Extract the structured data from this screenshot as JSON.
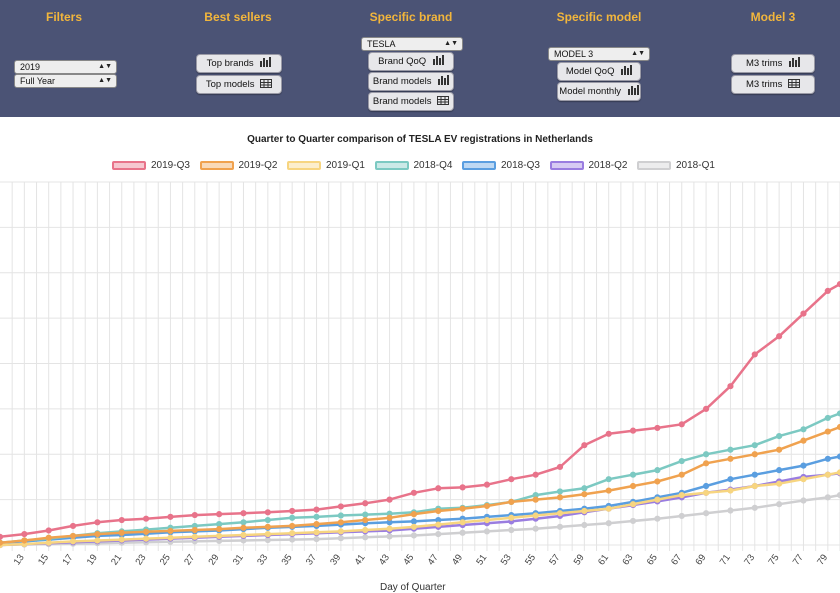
{
  "nav": {
    "filters": {
      "title": "Filters",
      "year": "2019",
      "period": "Full Year"
    },
    "best_sellers": {
      "title": "Best sellers",
      "top_brands": "Top brands",
      "top_models": "Top models"
    },
    "specific_brand": {
      "title": "Specific brand",
      "brand": "TESLA",
      "brand_qoq": "Brand QoQ",
      "brand_models_1": "Brand models",
      "brand_models_2": "Brand models"
    },
    "specific_model": {
      "title": "Specific model",
      "model": "MODEL 3",
      "model_qoq": "Model QoQ",
      "model_monthly": "Model monthly"
    },
    "model3": {
      "title": "Model 3",
      "m3_trims_1": "M3 trims",
      "m3_trims_2": "M3 trims"
    }
  },
  "icons": {
    "bar": "bar-chart-icon",
    "table": "table-icon",
    "dropdown": "chevron-updown-icon"
  },
  "chart_data": {
    "type": "line",
    "title": "Quarter to Quarter comparison of TESLA EV registrations in Netherlands",
    "xlabel": "Day of Quarter",
    "ylabel": "",
    "xlim": [
      11,
      80
    ],
    "ylim": [
      0,
      8
    ],
    "grid": true,
    "legend": "top-center",
    "x_ticks": [
      13,
      15,
      17,
      19,
      21,
      23,
      25,
      27,
      29,
      31,
      33,
      35,
      37,
      39,
      41,
      43,
      45,
      47,
      49,
      51,
      53,
      55,
      57,
      59,
      61,
      63,
      65,
      67,
      69,
      71,
      73,
      75,
      77,
      79
    ],
    "series": [
      {
        "name": "2019-Q3",
        "color": "#e8738a",
        "points": [
          [
            11,
            0.18
          ],
          [
            13,
            0.24
          ],
          [
            15,
            0.32
          ],
          [
            17,
            0.42
          ],
          [
            19,
            0.5
          ],
          [
            21,
            0.55
          ],
          [
            23,
            0.58
          ],
          [
            25,
            0.62
          ],
          [
            27,
            0.66
          ],
          [
            29,
            0.68
          ],
          [
            31,
            0.7
          ],
          [
            33,
            0.72
          ],
          [
            35,
            0.75
          ],
          [
            37,
            0.78
          ],
          [
            39,
            0.85
          ],
          [
            41,
            0.92
          ],
          [
            43,
            1.0
          ],
          [
            45,
            1.15
          ],
          [
            47,
            1.25
          ],
          [
            49,
            1.27
          ],
          [
            51,
            1.33
          ],
          [
            53,
            1.45
          ],
          [
            55,
            1.55
          ],
          [
            57,
            1.72
          ],
          [
            59,
            2.2
          ],
          [
            61,
            2.45
          ],
          [
            63,
            2.52
          ],
          [
            65,
            2.58
          ],
          [
            67,
            2.66
          ],
          [
            69,
            3.0
          ],
          [
            71,
            3.5
          ],
          [
            73,
            4.2
          ],
          [
            75,
            4.6
          ],
          [
            77,
            5.1
          ],
          [
            79,
            5.6
          ],
          [
            80,
            5.75
          ]
        ]
      },
      {
        "name": "2019-Q2",
        "color": "#f0a24f",
        "points": [
          [
            11,
            0.05
          ],
          [
            13,
            0.1
          ],
          [
            15,
            0.16
          ],
          [
            17,
            0.2
          ],
          [
            19,
            0.24
          ],
          [
            21,
            0.27
          ],
          [
            23,
            0.29
          ],
          [
            25,
            0.31
          ],
          [
            27,
            0.33
          ],
          [
            29,
            0.35
          ],
          [
            31,
            0.38
          ],
          [
            33,
            0.4
          ],
          [
            35,
            0.42
          ],
          [
            37,
            0.46
          ],
          [
            39,
            0.5
          ],
          [
            41,
            0.55
          ],
          [
            43,
            0.6
          ],
          [
            45,
            0.68
          ],
          [
            47,
            0.75
          ],
          [
            49,
            0.8
          ],
          [
            51,
            0.86
          ],
          [
            53,
            0.95
          ],
          [
            55,
            1.0
          ],
          [
            57,
            1.05
          ],
          [
            59,
            1.12
          ],
          [
            61,
            1.2
          ],
          [
            63,
            1.3
          ],
          [
            65,
            1.4
          ],
          [
            67,
            1.55
          ],
          [
            69,
            1.8
          ],
          [
            71,
            1.9
          ],
          [
            73,
            2.0
          ],
          [
            75,
            2.1
          ],
          [
            77,
            2.3
          ],
          [
            79,
            2.5
          ],
          [
            80,
            2.6
          ]
        ]
      },
      {
        "name": "2019-Q1",
        "color": "#f7d580",
        "points": [
          [
            11,
            0.0
          ],
          [
            13,
            0.02
          ],
          [
            15,
            0.05
          ],
          [
            17,
            0.08
          ],
          [
            19,
            0.1
          ],
          [
            21,
            0.12
          ],
          [
            23,
            0.14
          ],
          [
            25,
            0.16
          ],
          [
            27,
            0.18
          ],
          [
            29,
            0.2
          ],
          [
            31,
            0.22
          ],
          [
            33,
            0.24
          ],
          [
            35,
            0.26
          ],
          [
            37,
            0.28
          ],
          [
            39,
            0.3
          ],
          [
            41,
            0.33
          ],
          [
            43,
            0.36
          ],
          [
            45,
            0.4
          ],
          [
            47,
            0.45
          ],
          [
            49,
            0.5
          ],
          [
            51,
            0.55
          ],
          [
            53,
            0.6
          ],
          [
            55,
            0.65
          ],
          [
            57,
            0.7
          ],
          [
            59,
            0.75
          ],
          [
            61,
            0.8
          ],
          [
            63,
            0.9
          ],
          [
            65,
            1.0
          ],
          [
            67,
            1.1
          ],
          [
            69,
            1.15
          ],
          [
            71,
            1.2
          ],
          [
            73,
            1.3
          ],
          [
            75,
            1.35
          ],
          [
            77,
            1.45
          ],
          [
            79,
            1.55
          ],
          [
            80,
            1.6
          ]
        ]
      },
      {
        "name": "2018-Q4",
        "color": "#7cc9c2",
        "points": [
          [
            11,
            0.05
          ],
          [
            13,
            0.1
          ],
          [
            15,
            0.14
          ],
          [
            17,
            0.2
          ],
          [
            19,
            0.26
          ],
          [
            21,
            0.3
          ],
          [
            23,
            0.34
          ],
          [
            25,
            0.38
          ],
          [
            27,
            0.42
          ],
          [
            29,
            0.46
          ],
          [
            31,
            0.5
          ],
          [
            33,
            0.55
          ],
          [
            35,
            0.6
          ],
          [
            37,
            0.62
          ],
          [
            39,
            0.65
          ],
          [
            41,
            0.67
          ],
          [
            43,
            0.69
          ],
          [
            45,
            0.72
          ],
          [
            47,
            0.8
          ],
          [
            49,
            0.82
          ],
          [
            51,
            0.88
          ],
          [
            53,
            0.95
          ],
          [
            55,
            1.1
          ],
          [
            57,
            1.18
          ],
          [
            59,
            1.25
          ],
          [
            61,
            1.45
          ],
          [
            63,
            1.55
          ],
          [
            65,
            1.65
          ],
          [
            67,
            1.85
          ],
          [
            69,
            2.0
          ],
          [
            71,
            2.1
          ],
          [
            73,
            2.2
          ],
          [
            75,
            2.4
          ],
          [
            77,
            2.55
          ],
          [
            79,
            2.8
          ],
          [
            80,
            2.9
          ]
        ]
      },
      {
        "name": "2018-Q3",
        "color": "#5a9ee0",
        "points": [
          [
            11,
            0.05
          ],
          [
            13,
            0.08
          ],
          [
            15,
            0.12
          ],
          [
            17,
            0.16
          ],
          [
            19,
            0.2
          ],
          [
            21,
            0.22
          ],
          [
            23,
            0.25
          ],
          [
            25,
            0.28
          ],
          [
            27,
            0.3
          ],
          [
            29,
            0.32
          ],
          [
            31,
            0.35
          ],
          [
            33,
            0.38
          ],
          [
            35,
            0.4
          ],
          [
            37,
            0.42
          ],
          [
            39,
            0.45
          ],
          [
            41,
            0.48
          ],
          [
            43,
            0.5
          ],
          [
            45,
            0.52
          ],
          [
            47,
            0.55
          ],
          [
            49,
            0.58
          ],
          [
            51,
            0.62
          ],
          [
            53,
            0.66
          ],
          [
            55,
            0.7
          ],
          [
            57,
            0.75
          ],
          [
            59,
            0.8
          ],
          [
            61,
            0.86
          ],
          [
            63,
            0.95
          ],
          [
            65,
            1.05
          ],
          [
            67,
            1.15
          ],
          [
            69,
            1.3
          ],
          [
            71,
            1.45
          ],
          [
            73,
            1.55
          ],
          [
            75,
            1.65
          ],
          [
            77,
            1.75
          ],
          [
            79,
            1.9
          ],
          [
            80,
            1.95
          ]
        ]
      },
      {
        "name": "2018-Q2",
        "color": "#9a7de0",
        "points": [
          [
            11,
            0.0
          ],
          [
            13,
            0.02
          ],
          [
            15,
            0.04
          ],
          [
            17,
            0.06
          ],
          [
            19,
            0.08
          ],
          [
            21,
            0.1
          ],
          [
            23,
            0.12
          ],
          [
            25,
            0.14
          ],
          [
            27,
            0.16
          ],
          [
            29,
            0.18
          ],
          [
            31,
            0.2
          ],
          [
            33,
            0.22
          ],
          [
            35,
            0.24
          ],
          [
            37,
            0.26
          ],
          [
            39,
            0.28
          ],
          [
            41,
            0.3
          ],
          [
            43,
            0.32
          ],
          [
            45,
            0.36
          ],
          [
            47,
            0.4
          ],
          [
            49,
            0.44
          ],
          [
            51,
            0.48
          ],
          [
            53,
            0.52
          ],
          [
            55,
            0.58
          ],
          [
            57,
            0.64
          ],
          [
            59,
            0.72
          ],
          [
            61,
            0.8
          ],
          [
            63,
            0.88
          ],
          [
            65,
            0.96
          ],
          [
            67,
            1.05
          ],
          [
            69,
            1.15
          ],
          [
            71,
            1.22
          ],
          [
            73,
            1.3
          ],
          [
            75,
            1.4
          ],
          [
            77,
            1.5
          ],
          [
            79,
            1.55
          ],
          [
            80,
            1.58
          ]
        ]
      },
      {
        "name": "2018-Q1",
        "color": "#cfcfd1",
        "points": [
          [
            11,
            0.0
          ],
          [
            13,
            0.01
          ],
          [
            15,
            0.02
          ],
          [
            17,
            0.03
          ],
          [
            19,
            0.04
          ],
          [
            21,
            0.05
          ],
          [
            23,
            0.06
          ],
          [
            25,
            0.07
          ],
          [
            27,
            0.08
          ],
          [
            29,
            0.09
          ],
          [
            31,
            0.1
          ],
          [
            33,
            0.11
          ],
          [
            35,
            0.12
          ],
          [
            37,
            0.13
          ],
          [
            39,
            0.15
          ],
          [
            41,
            0.17
          ],
          [
            43,
            0.19
          ],
          [
            45,
            0.21
          ],
          [
            47,
            0.24
          ],
          [
            49,
            0.27
          ],
          [
            51,
            0.3
          ],
          [
            53,
            0.33
          ],
          [
            55,
            0.36
          ],
          [
            57,
            0.4
          ],
          [
            59,
            0.44
          ],
          [
            61,
            0.48
          ],
          [
            63,
            0.53
          ],
          [
            65,
            0.58
          ],
          [
            67,
            0.64
          ],
          [
            69,
            0.7
          ],
          [
            71,
            0.76
          ],
          [
            73,
            0.82
          ],
          [
            75,
            0.9
          ],
          [
            77,
            0.98
          ],
          [
            79,
            1.05
          ],
          [
            80,
            1.1
          ]
        ]
      }
    ]
  }
}
